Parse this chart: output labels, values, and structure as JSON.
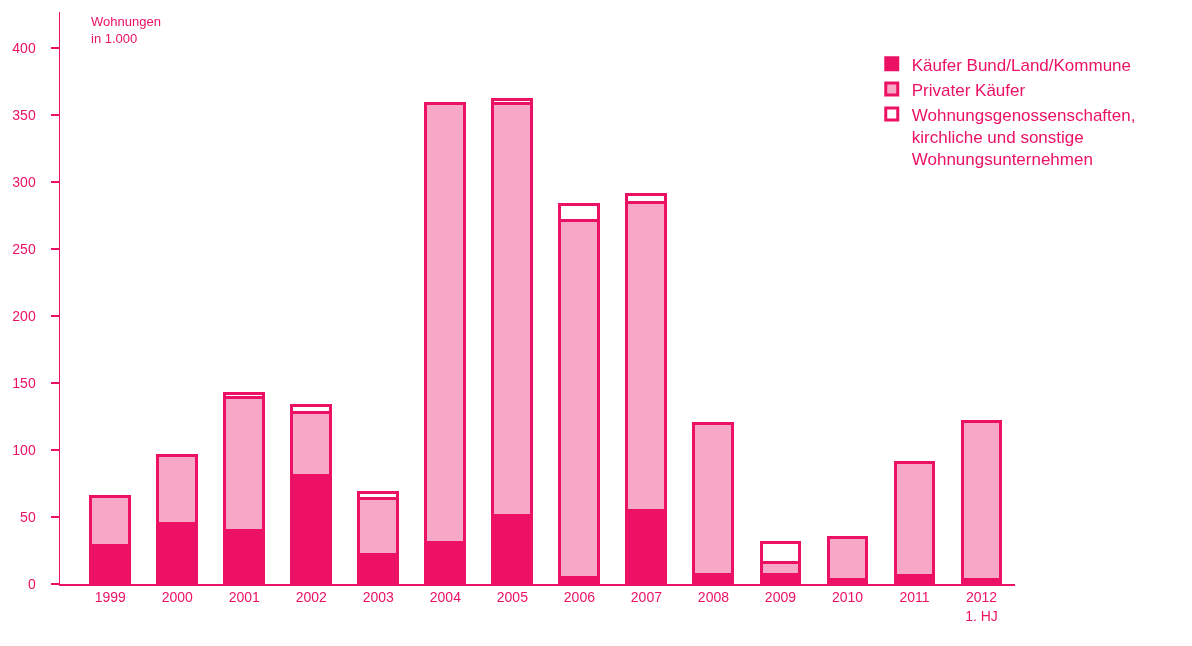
{
  "chart_data": {
    "type": "bar",
    "stacked": true,
    "ylabel": "Wohnungen\nin 1.000",
    "categories": [
      "1999",
      "2000",
      "2001",
      "2002",
      "2003",
      "2004",
      "2005",
      "2006",
      "2007",
      "2008",
      "2009",
      "2010",
      "2011",
      "2012\n1. HJ"
    ],
    "series": [
      {
        "name": "Käufer Bund/Land/Kommune",
        "color": "#ec1164",
        "values": [
          29,
          45,
          40,
          81,
          22,
          31,
          51,
          5,
          55,
          7,
          7,
          3,
          6,
          3
        ]
      },
      {
        "name": "Privater Käufer",
        "color": "#f7a8c6",
        "values": [
          36,
          51,
          99,
          47,
          42,
          328,
          308,
          266,
          230,
          113,
          9,
          32,
          85,
          118
        ]
      },
      {
        "name": "Wohnungsgenossenschaften,\nkirchliche und sonstige\nWohnungsunternehmen",
        "color": "#ffffff",
        "values": [
          null,
          null,
          3,
          5,
          4,
          null,
          3,
          12,
          6,
          null,
          15,
          null,
          null,
          null
        ]
      }
    ],
    "ylim": [
      0,
      427
    ],
    "yticks": [
      0,
      50,
      100,
      150,
      200,
      250,
      300,
      350,
      400
    ],
    "grid": false,
    "legend": "top right"
  }
}
